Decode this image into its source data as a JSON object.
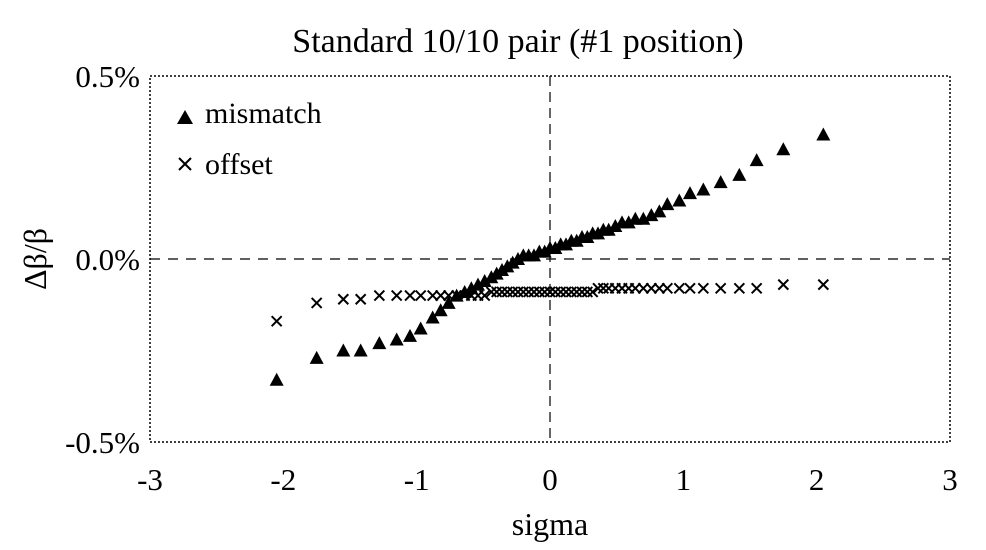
{
  "chart_data": {
    "type": "scatter",
    "title": "Standard 10/10 pair (#1 position)",
    "xlabel": "sigma",
    "ylabel": "Δβ/β",
    "xlim": [
      -3,
      3
    ],
    "ylim": [
      -0.5,
      0.5
    ],
    "x_ticks": [
      -3,
      -2,
      -1,
      0,
      1,
      2,
      3
    ],
    "x_tick_labels": [
      "-3",
      "-2",
      "-1",
      "0",
      "1",
      "2",
      "3"
    ],
    "y_ticks": [
      -0.5,
      0.0,
      0.5
    ],
    "y_tick_labels": [
      "-0.5%",
      "0.0%",
      "0.5%"
    ],
    "y_unit": "%",
    "grid": false,
    "legend_position": "top-left",
    "series": [
      {
        "name": "mismatch",
        "marker": "triangle",
        "x": [
          -2.05,
          -1.75,
          -1.55,
          -1.42,
          -1.28,
          -1.15,
          -1.05,
          -0.97,
          -0.88,
          -0.82,
          -0.76,
          -0.7,
          -0.64,
          -0.59,
          -0.54,
          -0.49,
          -0.44,
          -0.4,
          -0.36,
          -0.32,
          -0.28,
          -0.24,
          -0.2,
          -0.16,
          -0.12,
          -0.08,
          -0.04,
          0.0,
          0.04,
          0.08,
          0.12,
          0.16,
          0.2,
          0.24,
          0.28,
          0.32,
          0.36,
          0.4,
          0.44,
          0.49,
          0.54,
          0.59,
          0.64,
          0.7,
          0.76,
          0.82,
          0.88,
          0.97,
          1.05,
          1.15,
          1.28,
          1.42,
          1.55,
          1.75,
          2.05
        ],
        "y": [
          -0.33,
          -0.27,
          -0.25,
          -0.25,
          -0.23,
          -0.22,
          -0.21,
          -0.19,
          -0.16,
          -0.14,
          -0.12,
          -0.1,
          -0.09,
          -0.08,
          -0.07,
          -0.06,
          -0.05,
          -0.04,
          -0.03,
          -0.02,
          -0.01,
          0.0,
          0.01,
          0.01,
          0.01,
          0.02,
          0.02,
          0.03,
          0.03,
          0.04,
          0.04,
          0.05,
          0.05,
          0.06,
          0.06,
          0.07,
          0.07,
          0.08,
          0.08,
          0.09,
          0.1,
          0.1,
          0.11,
          0.11,
          0.12,
          0.13,
          0.15,
          0.16,
          0.18,
          0.19,
          0.21,
          0.23,
          0.27,
          0.3,
          0.34
        ]
      },
      {
        "name": "offset",
        "marker": "x",
        "x": [
          -2.05,
          -1.75,
          -1.55,
          -1.42,
          -1.28,
          -1.15,
          -1.05,
          -0.97,
          -0.88,
          -0.82,
          -0.76,
          -0.7,
          -0.64,
          -0.59,
          -0.54,
          -0.49,
          -0.44,
          -0.4,
          -0.36,
          -0.32,
          -0.28,
          -0.24,
          -0.2,
          -0.16,
          -0.12,
          -0.08,
          -0.04,
          0.0,
          0.04,
          0.08,
          0.12,
          0.16,
          0.2,
          0.24,
          0.28,
          0.32,
          0.36,
          0.4,
          0.44,
          0.49,
          0.54,
          0.59,
          0.64,
          0.7,
          0.76,
          0.82,
          0.88,
          0.97,
          1.05,
          1.15,
          1.28,
          1.42,
          1.55,
          1.75,
          2.05
        ],
        "y": [
          -0.17,
          -0.12,
          -0.11,
          -0.11,
          -0.1,
          -0.1,
          -0.1,
          -0.1,
          -0.1,
          -0.1,
          -0.1,
          -0.1,
          -0.1,
          -0.1,
          -0.1,
          -0.1,
          -0.09,
          -0.09,
          -0.09,
          -0.09,
          -0.09,
          -0.09,
          -0.09,
          -0.09,
          -0.09,
          -0.09,
          -0.09,
          -0.09,
          -0.09,
          -0.09,
          -0.09,
          -0.09,
          -0.09,
          -0.09,
          -0.09,
          -0.09,
          -0.08,
          -0.08,
          -0.08,
          -0.08,
          -0.08,
          -0.08,
          -0.08,
          -0.08,
          -0.08,
          -0.08,
          -0.08,
          -0.08,
          -0.08,
          -0.08,
          -0.08,
          -0.08,
          -0.08,
          -0.07,
          -0.07
        ]
      }
    ]
  }
}
